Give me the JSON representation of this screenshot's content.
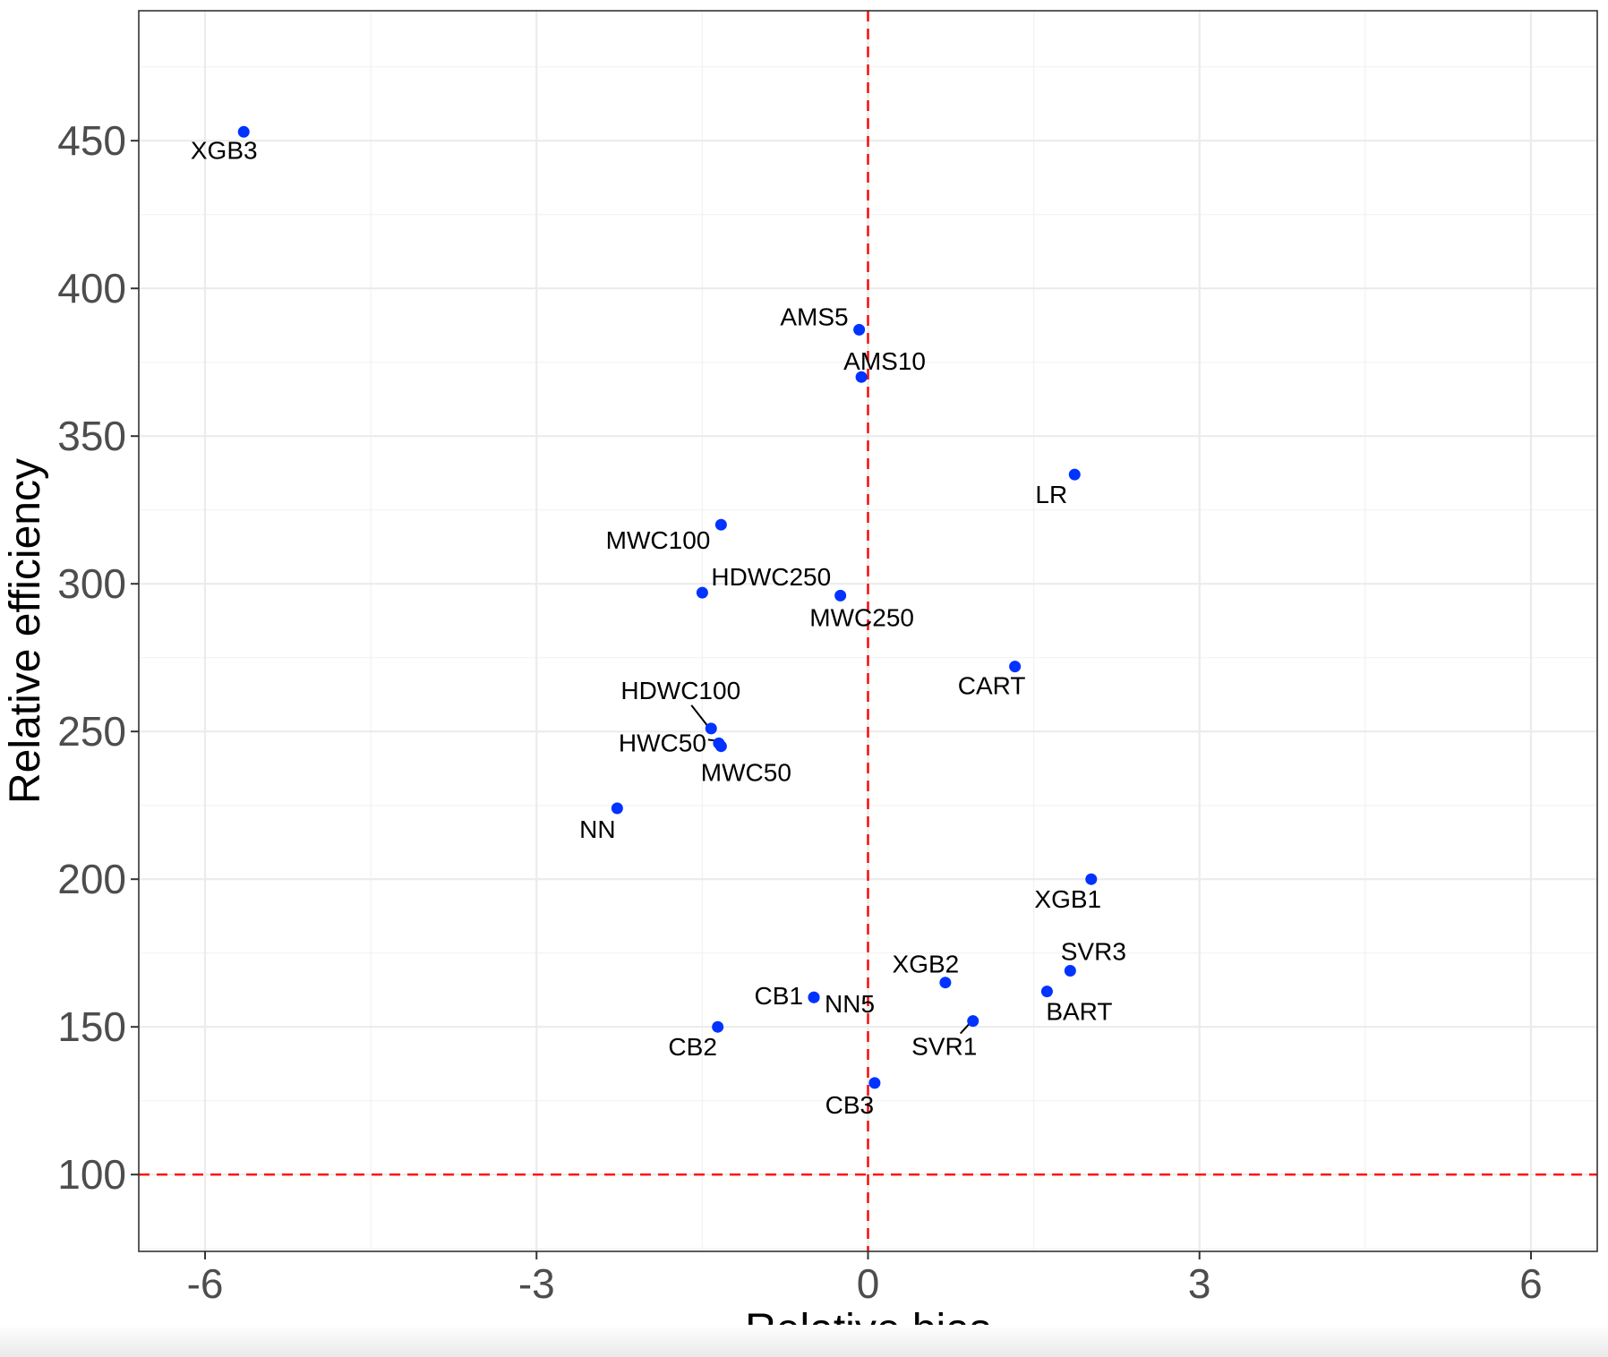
{
  "chart_data": {
    "type": "scatter",
    "title": "",
    "xlabel": "Relative bias",
    "ylabel": "Relative efficiency",
    "xlim": [
      -6.6,
      6.6
    ],
    "ylim": [
      74,
      494
    ],
    "x_ticks": [
      -6,
      -3,
      0,
      3,
      6
    ],
    "y_ticks": [
      100,
      150,
      200,
      250,
      300,
      350,
      400,
      450
    ],
    "x_tick_labels": [
      "-6",
      "-3",
      "0",
      "3",
      "6"
    ],
    "y_tick_labels": [
      "100",
      "150",
      "200",
      "250",
      "300",
      "350",
      "400",
      "450"
    ],
    "grid": true,
    "reference_lines": [
      {
        "axis": "x",
        "value": 0,
        "color": "#ff0000",
        "style": "dashed"
      },
      {
        "axis": "y",
        "value": 100,
        "color": "#ff0000",
        "style": "dashed"
      }
    ],
    "point_color": "#0033ff",
    "points": [
      {
        "label": "XGB3",
        "x": -5.65,
        "y": 453
      },
      {
        "label": "AMS5",
        "x": -0.08,
        "y": 386
      },
      {
        "label": "AMS10",
        "x": -0.06,
        "y": 370
      },
      {
        "label": "LR",
        "x": 1.87,
        "y": 337
      },
      {
        "label": "MWC100",
        "x": -1.33,
        "y": 320
      },
      {
        "label": "HDWC250",
        "x": -1.5,
        "y": 297
      },
      {
        "label": "MWC250",
        "x": -0.25,
        "y": 296
      },
      {
        "label": "CART",
        "x": 1.33,
        "y": 272
      },
      {
        "label": "HDWC100",
        "x": -1.42,
        "y": 251
      },
      {
        "label": "HWC50",
        "x": -1.35,
        "y": 246
      },
      {
        "label": "MWC50",
        "x": -1.33,
        "y": 245
      },
      {
        "label": "NN",
        "x": -2.27,
        "y": 224
      },
      {
        "label": "XGB1",
        "x": 2.02,
        "y": 200
      },
      {
        "label": "SVR3",
        "x": 1.83,
        "y": 169
      },
      {
        "label": "XGB2",
        "x": 0.7,
        "y": 165
      },
      {
        "label": "BART",
        "x": 1.62,
        "y": 162
      },
      {
        "label": "CB1",
        "x": -0.49,
        "y": 160
      },
      {
        "label": "NN5",
        "x": -0.49,
        "y": 160
      },
      {
        "label": "SVR1",
        "x": 0.95,
        "y": 152
      },
      {
        "label": "CB2",
        "x": -1.36,
        "y": 150
      },
      {
        "label": "CB3",
        "x": 0.06,
        "y": 131
      }
    ]
  }
}
